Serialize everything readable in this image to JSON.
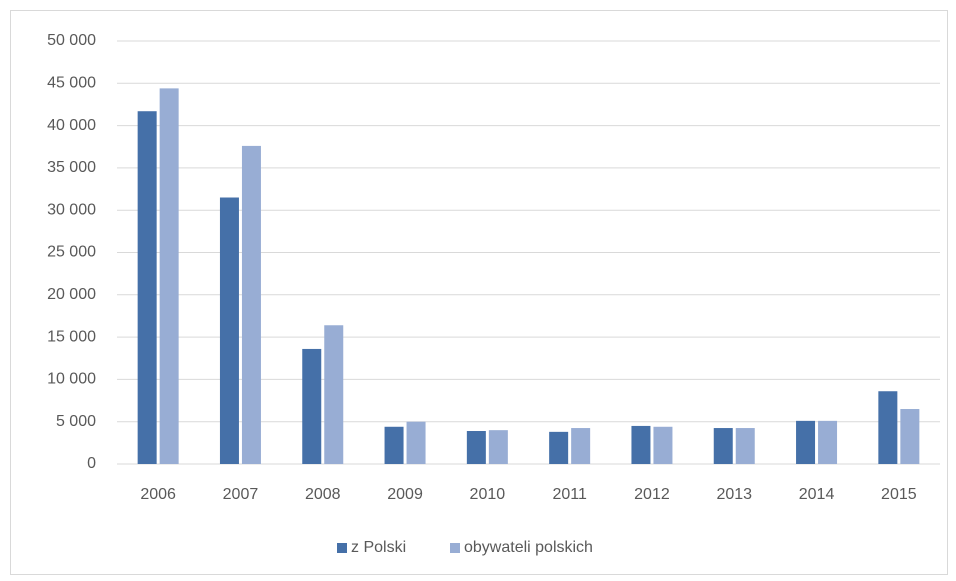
{
  "chart_data": {
    "type": "bar",
    "categories": [
      "2006",
      "2007",
      "2008",
      "2009",
      "2010",
      "2011",
      "2012",
      "2013",
      "2014",
      "2015"
    ],
    "series": [
      {
        "name": "z Polski",
        "color": "#4570a8",
        "values": [
          41700,
          31500,
          13600,
          4400,
          3900,
          3800,
          4500,
          4250,
          5100,
          8600
        ]
      },
      {
        "name": "obywateli polskich",
        "color": "#98add4",
        "values": [
          44400,
          37600,
          16400,
          5000,
          4000,
          4250,
          4400,
          4250,
          5100,
          6500
        ]
      }
    ],
    "ylim": [
      0,
      50000
    ],
    "yticks": [
      0,
      {
        "value": 5000,
        "label": "5 000"
      },
      {
        "value": 10000,
        "label": "10 000"
      },
      {
        "value": 15000,
        "label": "15 000"
      },
      {
        "value": 20000,
        "label": "20 000"
      },
      {
        "value": 25000,
        "label": "25 000"
      },
      {
        "value": 30000,
        "label": "30 000"
      },
      {
        "value": 35000,
        "label": "35 000"
      },
      {
        "value": 40000,
        "label": "40 000"
      },
      {
        "value": 45000,
        "label": "45 000"
      },
      {
        "value": 50000,
        "label": "50 000"
      }
    ],
    "grid": true,
    "legend": "bottom"
  }
}
